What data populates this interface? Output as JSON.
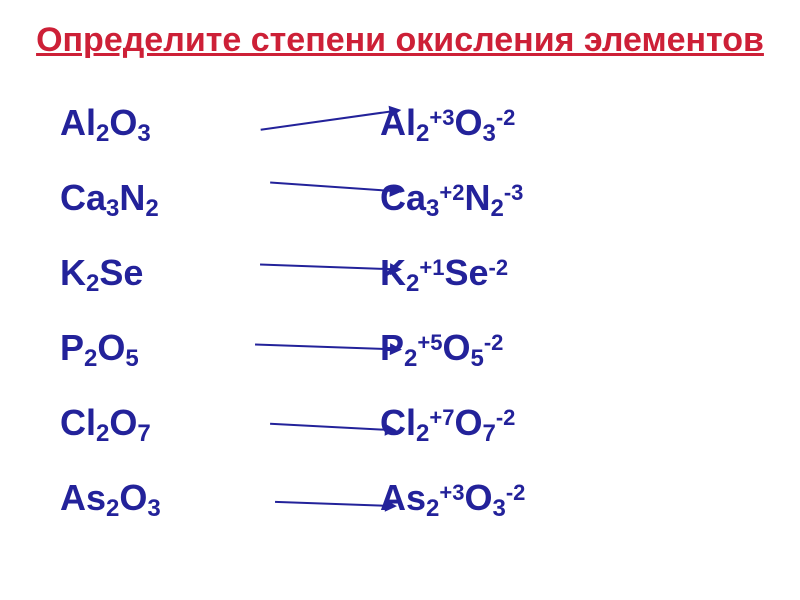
{
  "title": "Определите степени окисления элементов",
  "colors": {
    "title_color": "#cd2037",
    "formula_color": "#23229a",
    "background": "#ffffff"
  },
  "typography": {
    "title_fontsize": 34,
    "formula_fontsize": 36,
    "subscript_fontsize": 24,
    "superscript_fontsize": 22,
    "font_family": "Arial"
  },
  "left_formulas": [
    {
      "parts": [
        {
          "t": "e",
          "v": "Al"
        },
        {
          "t": "s",
          "v": "2"
        },
        {
          "t": "e",
          "v": "O"
        },
        {
          "t": "s",
          "v": "3"
        }
      ]
    },
    {
      "parts": [
        {
          "t": "e",
          "v": "Ca"
        },
        {
          "t": "s",
          "v": "3"
        },
        {
          "t": "e",
          "v": "N"
        },
        {
          "t": "s",
          "v": "2"
        }
      ]
    },
    {
      "parts": [
        {
          "t": "e",
          "v": "K"
        },
        {
          "t": "s",
          "v": "2"
        },
        {
          "t": "e",
          "v": "Se"
        }
      ]
    },
    {
      "parts": [
        {
          "t": "e",
          "v": "P"
        },
        {
          "t": "s",
          "v": "2"
        },
        {
          "t": "e",
          "v": "O"
        },
        {
          "t": "s",
          "v": "5"
        }
      ]
    },
    {
      "parts": [
        {
          "t": "e",
          "v": "Cl"
        },
        {
          "t": "s",
          "v": "2"
        },
        {
          "t": "e",
          "v": "O"
        },
        {
          "t": "s",
          "v": "7"
        }
      ]
    },
    {
      "parts": [
        {
          "t": "e",
          "v": "As"
        },
        {
          "t": "s",
          "v": "2"
        },
        {
          "t": "e",
          "v": "O"
        },
        {
          "t": "s",
          "v": "3"
        }
      ]
    }
  ],
  "right_formulas": [
    {
      "parts": [
        {
          "t": "e",
          "v": "Al"
        },
        {
          "t": "s",
          "v": "2"
        },
        {
          "t": "p",
          "v": "+3"
        },
        {
          "t": "e",
          "v": "O"
        },
        {
          "t": "s",
          "v": "3"
        },
        {
          "t": "p",
          "v": "-2"
        }
      ]
    },
    {
      "parts": [
        {
          "t": "e",
          "v": "Ca"
        },
        {
          "t": "s",
          "v": "3"
        },
        {
          "t": "p",
          "v": "+2"
        },
        {
          "t": "e",
          "v": "N"
        },
        {
          "t": "s",
          "v": "2"
        },
        {
          "t": "p",
          "v": "-3"
        }
      ]
    },
    {
      "parts": [
        {
          "t": "e",
          "v": "K"
        },
        {
          "t": "s",
          "v": "2"
        },
        {
          "t": "p",
          "v": "+1"
        },
        {
          "t": "e",
          "v": "Se"
        },
        {
          "t": "p",
          "v": "-2"
        }
      ]
    },
    {
      "parts": [
        {
          "t": "e",
          "v": "P"
        },
        {
          "t": "s",
          "v": "2"
        },
        {
          "t": "p",
          "v": "+5"
        },
        {
          "t": "e",
          "v": "O"
        },
        {
          "t": "s",
          "v": "5"
        },
        {
          "t": "p",
          "v": "-2"
        }
      ]
    },
    {
      "parts": [
        {
          "t": "e",
          "v": "Cl"
        },
        {
          "t": "s",
          "v": "2"
        },
        {
          "t": "p",
          "v": "+7"
        },
        {
          "t": "e",
          "v": "O"
        },
        {
          "t": "s",
          "v": "7"
        },
        {
          "t": "p",
          "v": "-2"
        }
      ]
    },
    {
      "parts": [
        {
          "t": "e",
          "v": "As"
        },
        {
          "t": "s",
          "v": "2"
        },
        {
          "t": "p",
          "v": "+3"
        },
        {
          "t": "e",
          "v": "O"
        },
        {
          "t": "s",
          "v": "3"
        },
        {
          "t": "p",
          "v": "-2"
        }
      ]
    }
  ],
  "arrows": {
    "count": 6,
    "color": "#23229a",
    "line_width": 2
  }
}
